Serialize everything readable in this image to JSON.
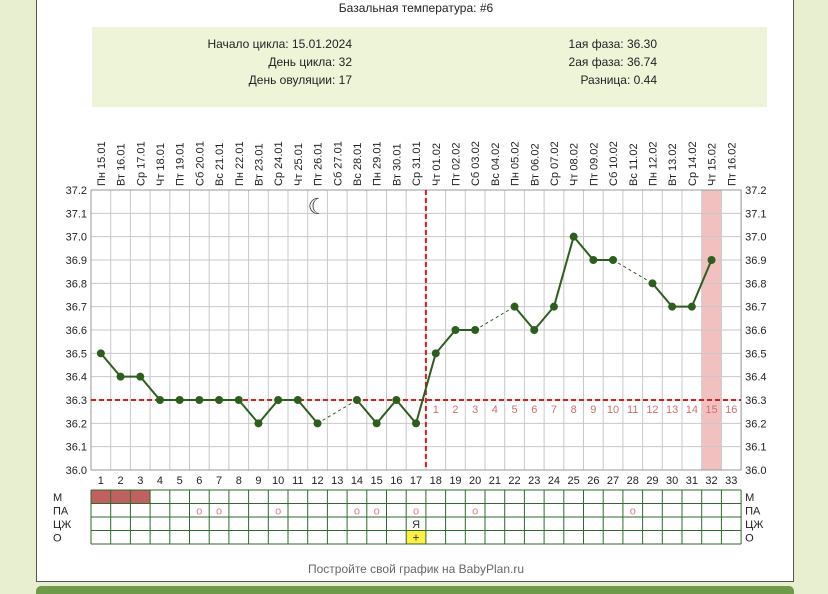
{
  "chart_title": "Базальная температура: #6",
  "info": {
    "cycle_start": "Начало цикла: 15.01.2024",
    "cycle_day": "День цикла: 32",
    "ovulation_day": "День овуляции: 17",
    "phase1": "1ая фаза: 36.30",
    "phase2": "2ая фаза: 36.74",
    "difference": "Разница: 0.44"
  },
  "footer": "Постройте свой график на BabyPlan.ru",
  "colors": {
    "line": "#2e5e1e",
    "coverline": "#cc2222",
    "highlight": "#f3c0c0",
    "menses": "#c06060",
    "circle": "#e08080",
    "plus_bg": "#ffee44"
  },
  "chart_data": {
    "type": "line",
    "title": "Базальная температура: #6",
    "x_days": [
      1,
      2,
      3,
      4,
      5,
      6,
      7,
      8,
      9,
      10,
      11,
      12,
      13,
      14,
      15,
      16,
      17,
      18,
      19,
      20,
      21,
      22,
      23,
      24,
      25,
      26,
      27,
      28,
      29,
      30,
      31,
      32,
      33
    ],
    "date_labels": [
      "Пн 15.01",
      "Вт 16.01",
      "Ср 17.01",
      "Чт 18.01",
      "Пт 19.01",
      "Сб 20.01",
      "Вс 21.01",
      "Пн 22.01",
      "Вт 23.01",
      "Ср 24.01",
      "Чт 25.01",
      "Пт 26.01",
      "Сб 27.01",
      "Вс 28.01",
      "Пн 29.01",
      "Вт 30.01",
      "Ср 31.01",
      "Чт 01.02",
      "Пт 02.02",
      "Сб 03.02",
      "Вс 04.02",
      "Пн 05.02",
      "Вт 06.02",
      "Ср 07.02",
      "Чт 08.02",
      "Пт 09.02",
      "Сб 10.02",
      "Вс 11.02",
      "Пн 12.02",
      "Вт 13.02",
      "Ср 14.02",
      "Чт 15.02",
      "Пт 16.02"
    ],
    "temperatures": [
      36.5,
      36.4,
      36.4,
      36.3,
      36.3,
      36.3,
      36.3,
      36.3,
      36.2,
      36.3,
      36.3,
      36.2,
      null,
      36.3,
      36.2,
      36.3,
      36.2,
      36.5,
      36.6,
      36.6,
      null,
      36.7,
      36.6,
      36.7,
      37.0,
      36.9,
      36.9,
      null,
      36.8,
      36.7,
      36.7,
      36.9,
      null
    ],
    "dashed_gaps": [
      [
        12,
        14
      ],
      [
        20,
        22
      ],
      [
        27,
        29
      ]
    ],
    "ylim": [
      36.0,
      37.2
    ],
    "yticks": [
      "36.0",
      "36.1",
      "36.2",
      "36.3",
      "36.4",
      "36.5",
      "36.6",
      "36.7",
      "36.8",
      "36.9",
      "37.0",
      "37.1",
      "37.2"
    ],
    "coverline": 36.3,
    "ovulation_day": 17,
    "highlight_day": 32,
    "luteal_labels": [
      "1",
      "2",
      "3",
      "4",
      "5",
      "6",
      "7",
      "8",
      "9",
      "10",
      "11",
      "12",
      "13",
      "14",
      "15",
      "16"
    ],
    "moon_day": 12,
    "moon_symbol": "☾"
  },
  "symptoms": {
    "row_labels": [
      "М",
      "ПА",
      "ЦЖ",
      "О"
    ],
    "menses_days": [
      1,
      2,
      3
    ],
    "pa_days": [
      6,
      7,
      10,
      14,
      15,
      17,
      20,
      28
    ],
    "pa_symbol": "о",
    "cz_day": 17,
    "cz_symbol": "Я",
    "o_day": 17,
    "o_symbol": "+"
  }
}
